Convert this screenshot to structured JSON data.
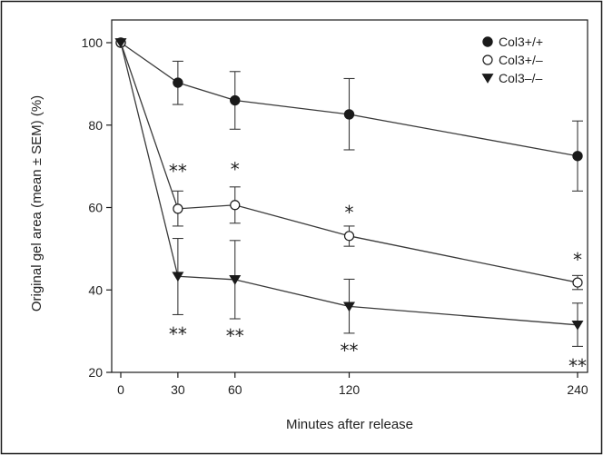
{
  "chart_data": {
    "type": "line",
    "xlabel": "Minutes after release",
    "ylabel": "Original gel area (mean ± SEM) (%)",
    "xlim": [
      0,
      240
    ],
    "ylim": [
      20,
      100
    ],
    "x_ticks": [
      0,
      30,
      60,
      120,
      240
    ],
    "y_ticks": [
      20,
      40,
      60,
      80,
      100
    ],
    "grid": false,
    "legend_position": "top-right",
    "x": [
      0,
      30,
      60,
      120,
      240
    ],
    "series": [
      {
        "name": "Col3+/+",
        "marker": "filled-circle",
        "values": [
          100,
          90.3,
          86,
          82.6,
          72.5
        ],
        "err_upper": [
          100,
          95.5,
          93,
          91.3,
          81
        ],
        "err_lower": [
          100,
          85,
          79,
          74,
          64
        ]
      },
      {
        "name": "Col3+/–",
        "marker": "open-circle",
        "values": [
          100,
          59.7,
          60.6,
          53.1,
          41.8
        ],
        "err_upper": [
          100,
          64,
          65,
          55.5,
          43.5
        ],
        "err_lower": [
          100,
          55.5,
          56.2,
          50.6,
          40.1
        ]
      },
      {
        "name": "Col3–/–",
        "marker": "filled-triangle-down",
        "values": [
          100,
          43.3,
          42.5,
          36,
          31.5
        ],
        "err_upper": [
          100,
          52.5,
          52,
          42.6,
          36.8
        ],
        "err_lower": [
          100,
          34,
          33,
          29.5,
          26.3
        ]
      }
    ],
    "annotations": [
      {
        "text": "**",
        "x": 30,
        "y": 69
      },
      {
        "text": "*",
        "x": 60,
        "y": 69.5
      },
      {
        "text": "*",
        "x": 120,
        "y": 59
      },
      {
        "text": "*",
        "x": 240,
        "y": 47.5
      },
      {
        "text": "**",
        "x": 30,
        "y": 29.5
      },
      {
        "text": "**",
        "x": 60,
        "y": 29
      },
      {
        "text": "**",
        "x": 120,
        "y": 25.5
      },
      {
        "text": "**",
        "x": 240,
        "y": 21.8
      }
    ]
  },
  "colors": {
    "line": "#3a3a3a",
    "marker": "#1a1a1a",
    "frame": "#1a1a1a",
    "text": "#222222",
    "background": "#ffffff"
  }
}
